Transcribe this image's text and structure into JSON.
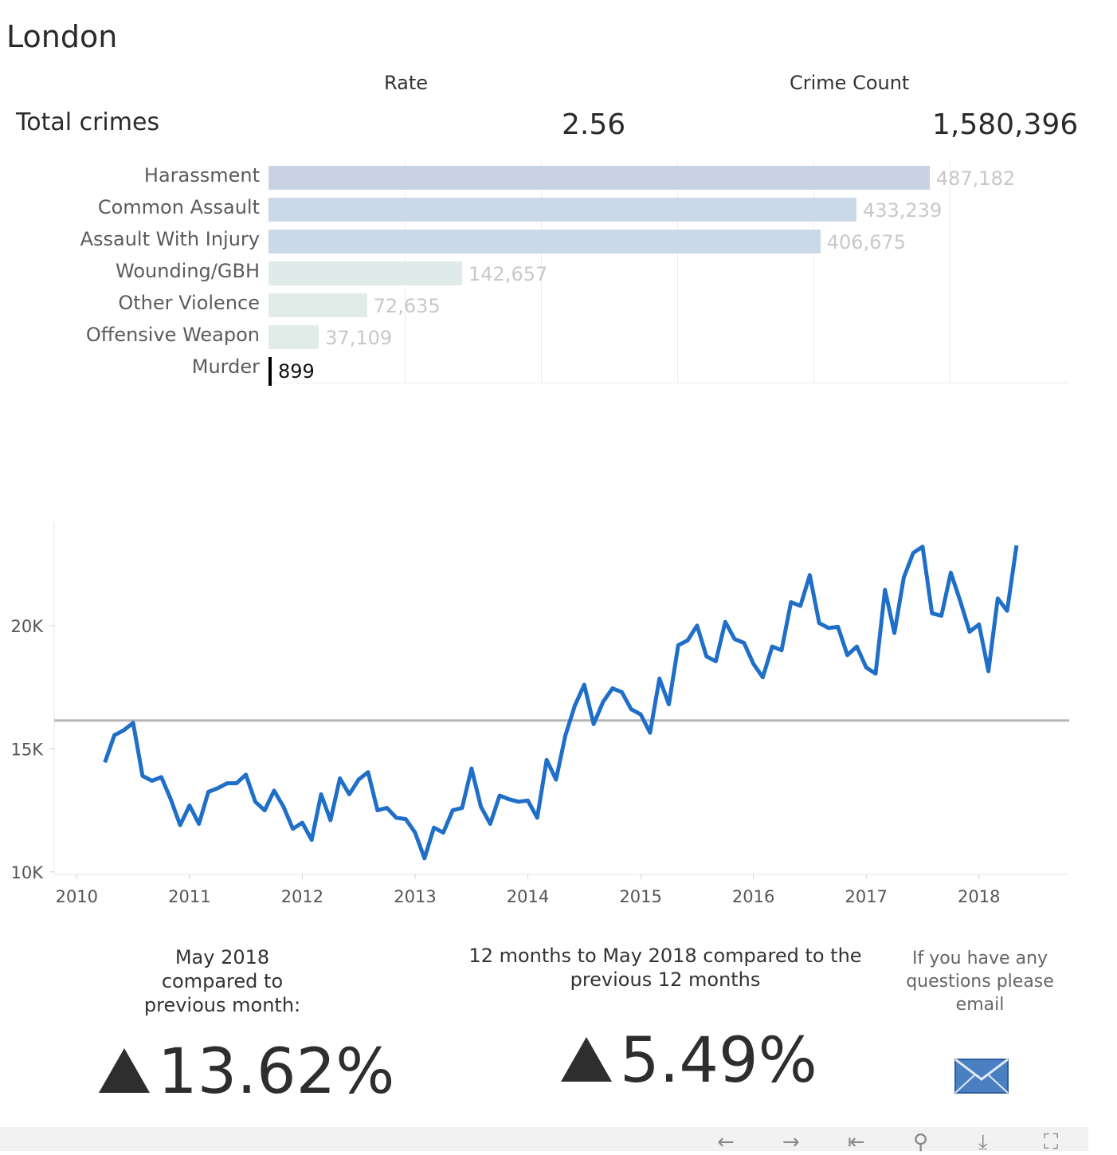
{
  "region": "London",
  "headers": {
    "rate": "Rate",
    "crime_count": "Crime Count"
  },
  "total": {
    "label": "Total crimes",
    "rate": "2.56",
    "count": "1,580,396"
  },
  "chart_data": [
    {
      "type": "bar",
      "orientation": "horizontal",
      "categories": [
        "Harassment",
        "Common Assault",
        "Assault With Injury",
        "Wounding/GBH",
        "Other Violence",
        "Offensive Weapon",
        "Murder"
      ],
      "values": [
        487182,
        433239,
        406675,
        142657,
        72635,
        37109,
        899
      ],
      "value_labels": [
        "487,182",
        "433,239",
        "406,675",
        "142,657",
        "72,635",
        "37,109",
        "899"
      ],
      "colors": [
        "#c9d2e3",
        "#cbd8e7",
        "#cad8e8",
        "#deebe8",
        "#e1ece9",
        "#e1ece9",
        "#000000"
      ],
      "xlim": [
        0,
        590000
      ]
    },
    {
      "type": "line",
      "title": "",
      "xlabel": "",
      "ylabel": "",
      "x_start": 2010.25,
      "x_step_months": 1,
      "xticks": [
        2010,
        2011,
        2012,
        2013,
        2014,
        2015,
        2016,
        2017,
        2018
      ],
      "xtick_labels": [
        "2010",
        "2011",
        "2012",
        "2013",
        "2014",
        "2015",
        "2016",
        "2017",
        "2018"
      ],
      "yticks": [
        10000,
        15000,
        20000
      ],
      "ytick_labels": [
        "10K",
        "15K",
        "20K"
      ],
      "xlim": [
        2009.8,
        2018.8
      ],
      "ylim": [
        9900,
        24200
      ],
      "reference_line": 16150,
      "line_color": "#1f6fc8",
      "ref_color": "#b5b5b5",
      "values": [
        14450,
        15550,
        15750,
        16050,
        13900,
        13700,
        13850,
        12950,
        11900,
        12700,
        11950,
        13250,
        13400,
        13600,
        13600,
        13950,
        12850,
        12500,
        13300,
        12650,
        11750,
        12000,
        11300,
        13150,
        12100,
        13800,
        13150,
        13750,
        14050,
        12500,
        12600,
        12200,
        12150,
        11600,
        10550,
        11800,
        11600,
        12500,
        12600,
        14200,
        12650,
        11950,
        13100,
        12950,
        12850,
        12900,
        12200,
        14550,
        13750,
        15550,
        16750,
        17600,
        16000,
        16900,
        17450,
        17300,
        16600,
        16400,
        15650,
        17850,
        16800,
        19200,
        19400,
        20000,
        18750,
        18550,
        20150,
        19450,
        19300,
        18450,
        17900,
        19150,
        19000,
        20950,
        20800,
        22050,
        20100,
        19900,
        19950,
        18800,
        19150,
        18300,
        18050,
        21450,
        19700,
        21950,
        22950,
        23200,
        20500,
        20400,
        22150,
        21000,
        19750,
        20050,
        18150,
        21100,
        20600,
        23250
      ]
    }
  ],
  "bottom": {
    "left_heading_1": "May 2018",
    "left_heading_2": "compared to",
    "left_heading_3": "previous month:",
    "left_pct": "13.62%",
    "mid_heading_1": "12 months to May 2018 compared to the",
    "mid_heading_2": "previous 12 months",
    "mid_pct": "5.49%",
    "email_1": "If you have any",
    "email_2": "questions please",
    "email_3": "email"
  },
  "toolbar": {
    "icons": [
      "undo-icon",
      "redo-icon",
      "revert-icon",
      "share-icon",
      "download-icon",
      "fullscreen-icon"
    ],
    "glyphs": [
      "←",
      "→",
      "⇤",
      "⚲",
      "⤓",
      "⛶"
    ]
  }
}
